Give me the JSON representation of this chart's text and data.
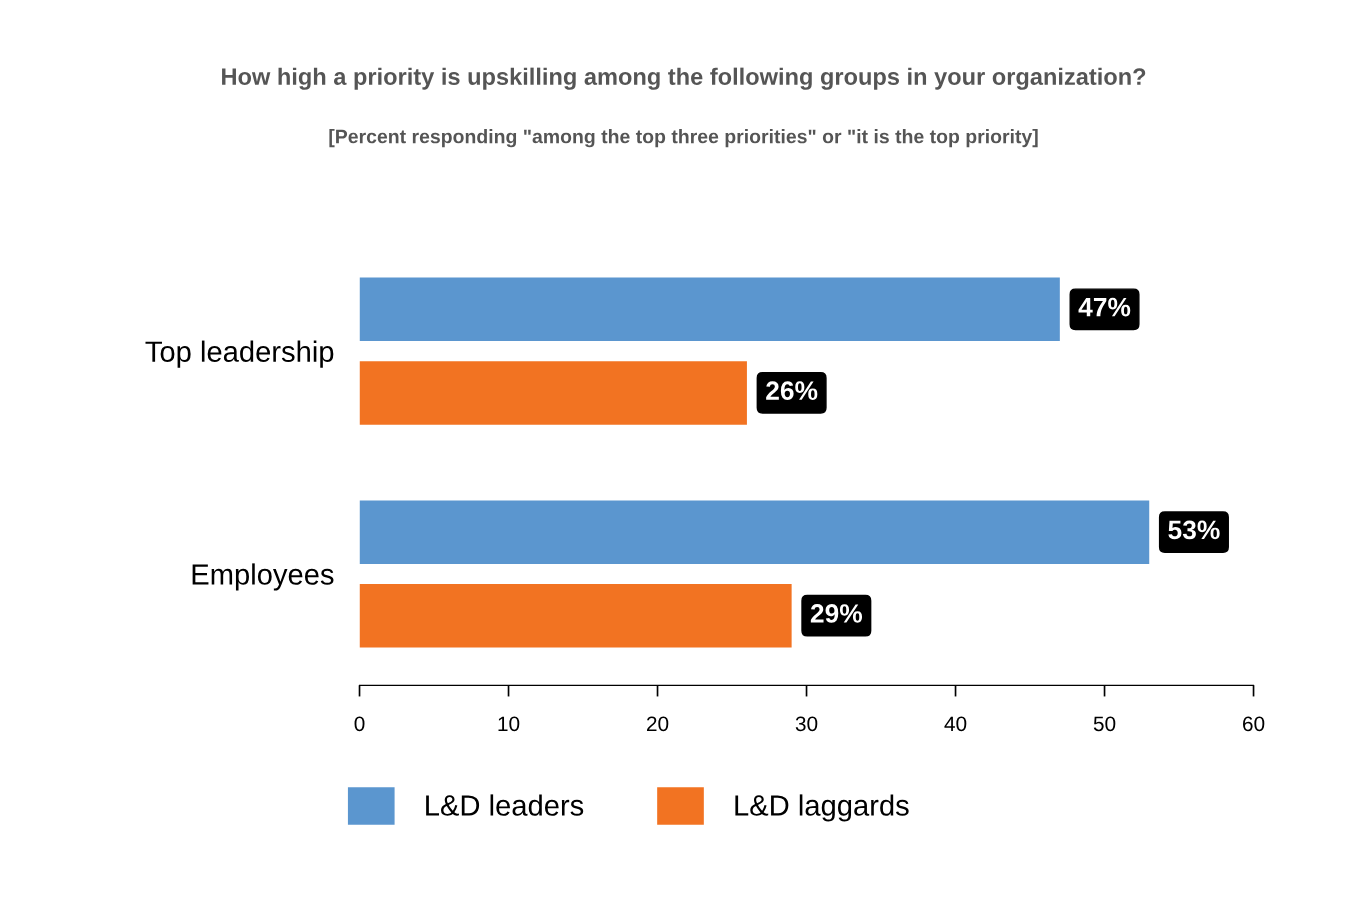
{
  "chart_data": {
    "type": "bar",
    "orientation": "horizontal",
    "title": "How high a priority is upskilling among the following groups in your organization?",
    "subtitle": "[Percent responding \"among the top three priorities\" or \"it is the top priority]",
    "categories": [
      "Top leadership",
      "Employees"
    ],
    "series": [
      {
        "name": "L&D leaders",
        "color": "#5b96cf",
        "values": [
          47,
          53
        ],
        "value_labels": [
          "47%",
          "53%"
        ]
      },
      {
        "name": "L&D laggards",
        "color": "#f27322",
        "values": [
          26,
          29
        ],
        "value_labels": [
          "26%",
          "29%"
        ]
      }
    ],
    "xlim": [
      0,
      60
    ],
    "xticks": [
      0,
      10,
      20,
      30,
      40,
      50,
      60
    ],
    "grid": false,
    "legend": "bottom"
  }
}
